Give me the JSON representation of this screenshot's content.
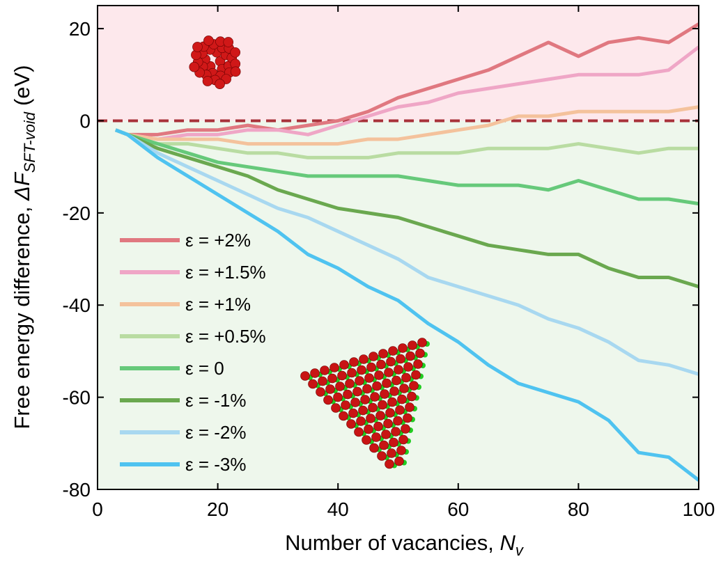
{
  "chart_data": {
    "type": "line",
    "xlabel": {
      "text": "Number of vacancies, ",
      "symbol": "N",
      "subscript": "v"
    },
    "ylabel": {
      "text": "Free energy difference, ",
      "symbol": "ΔF",
      "subscript": "SFT-void",
      "unit": "(eV)"
    },
    "x": [
      3,
      5,
      10,
      15,
      20,
      25,
      30,
      35,
      40,
      45,
      50,
      55,
      60,
      65,
      70,
      75,
      80,
      85,
      90,
      95,
      100
    ],
    "xlim": [
      0,
      100
    ],
    "xticks": [
      0,
      20,
      40,
      60,
      80,
      100
    ],
    "ylim": [
      -80,
      25
    ],
    "yticks": [
      -80,
      -60,
      -40,
      -20,
      0,
      20
    ],
    "legend": "lower-left",
    "series": [
      {
        "name": "ε = +2%",
        "color": "#e07880",
        "values": [
          -2,
          -3,
          -3,
          -2,
          -2,
          -1,
          -2,
          -1,
          0,
          2,
          5,
          7,
          9,
          11,
          14,
          17,
          14,
          17,
          18,
          17,
          21
        ]
      },
      {
        "name": "ε = +1.5%",
        "color": "#efa6c6",
        "values": [
          -2,
          -3,
          -4,
          -3,
          -3,
          -2,
          -2,
          -3,
          -1,
          1,
          3,
          4,
          6,
          7,
          8,
          9,
          10,
          10,
          10,
          11,
          16
        ]
      },
      {
        "name": "ε = +1%",
        "color": "#f4c29c",
        "values": [
          -2,
          -3,
          -4,
          -4,
          -4,
          -5,
          -5,
          -5,
          -5,
          -4,
          -4,
          -3,
          -2,
          -1,
          1,
          1,
          2,
          2,
          2,
          2,
          3
        ]
      },
      {
        "name": "ε = +0.5%",
        "color": "#b9dca2",
        "values": [
          -2,
          -3,
          -5,
          -5,
          -6,
          -7,
          -7,
          -8,
          -8,
          -8,
          -7,
          -7,
          -7,
          -6,
          -6,
          -6,
          -5,
          -6,
          -7,
          -6,
          -6
        ]
      },
      {
        "name": "ε = 0",
        "color": "#66c97a",
        "values": [
          -2,
          -3,
          -5,
          -7,
          -9,
          -10,
          -11,
          -12,
          -12,
          -12,
          -12,
          -13,
          -14,
          -14,
          -14,
          -15,
          -13,
          -15,
          -17,
          -17,
          -18
        ]
      },
      {
        "name": "ε = -1%",
        "color": "#6aa84f",
        "values": [
          -2,
          -3,
          -6,
          -8,
          -10,
          -12,
          -15,
          -17,
          -19,
          -20,
          -21,
          -23,
          -25,
          -27,
          -28,
          -29,
          -29,
          -32,
          -34,
          -34,
          -36
        ]
      },
      {
        "name": "ε = -2%",
        "color": "#a8d8f0",
        "values": [
          -2,
          -3,
          -7,
          -10,
          -13,
          -16,
          -19,
          -21,
          -24,
          -27,
          -30,
          -34,
          -36,
          -38,
          -40,
          -43,
          -45,
          -48,
          -52,
          -53,
          -55
        ]
      },
      {
        "name": "ε = -3%",
        "color": "#4fc3f0",
        "values": [
          -2,
          -3,
          -8,
          -12,
          -16,
          -20,
          -24,
          -29,
          -32,
          -36,
          -39,
          -44,
          -48,
          -53,
          -57,
          -59,
          -61,
          -65,
          -72,
          -73,
          -78
        ]
      }
    ]
  }
}
